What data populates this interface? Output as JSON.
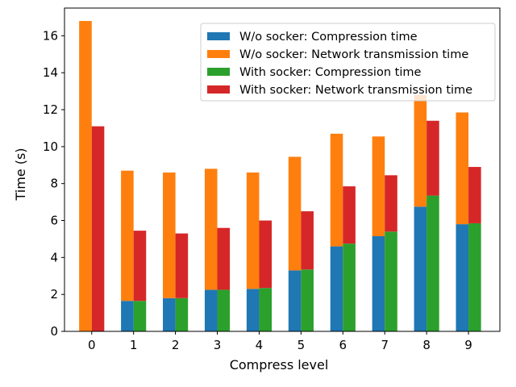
{
  "chart_data": {
    "type": "bar",
    "stacked": true,
    "grouped": true,
    "xlabel": "Compress level",
    "ylabel": "Time (s)",
    "categories": [
      "0",
      "1",
      "2",
      "3",
      "4",
      "5",
      "6",
      "7",
      "8",
      "9"
    ],
    "ylim": [
      0,
      17.5
    ],
    "yticks": [
      0,
      2,
      4,
      6,
      8,
      10,
      12,
      14,
      16
    ],
    "grid": false,
    "legend_position": "top-right",
    "groups": [
      {
        "name": "W/o socker",
        "series": [
          {
            "name": "W/o socker: Compression time",
            "color": "#1f77b4",
            "values": [
              0,
              1.65,
              1.8,
              2.25,
              2.3,
              3.3,
              4.6,
              5.15,
              6.75,
              5.8
            ]
          },
          {
            "name": "W/o socker: Network transmission time",
            "color": "#ff7f0e",
            "values": [
              16.8,
              7.05,
              6.8,
              6.55,
              6.3,
              6.15,
              6.1,
              5.4,
              6.05,
              6.05
            ]
          }
        ]
      },
      {
        "name": "With socker",
        "series": [
          {
            "name": "With socker: Compression time",
            "color": "#2ca02c",
            "values": [
              0,
              1.65,
              1.8,
              2.25,
              2.35,
              3.35,
              4.75,
              5.4,
              7.35,
              5.85
            ]
          },
          {
            "name": "With socker: Network transmission time",
            "color": "#d62728",
            "values": [
              11.1,
              3.8,
              3.5,
              3.35,
              3.65,
              3.15,
              3.1,
              3.05,
              4.05,
              3.05
            ]
          }
        ]
      }
    ]
  }
}
